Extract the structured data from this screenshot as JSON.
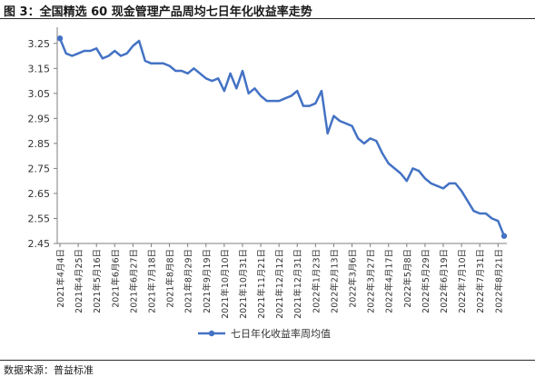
{
  "figure": {
    "title": "图 3：全国精选 60 现金管理产品周均七日年化收益率走势",
    "source": "数据来源：普益标准"
  },
  "colors": {
    "line": "#4472C4",
    "axis": "#7f7f7f"
  },
  "chart_data": {
    "type": "line",
    "title": "",
    "xlabel": "",
    "ylabel": "",
    "ylim": [
      2.45,
      3.3
    ],
    "yticks": [
      "2.45",
      "2.55",
      "2.65",
      "2.75",
      "2.85",
      "2.95",
      "3.05",
      "3.15",
      "3.25"
    ],
    "grid": false,
    "legend": "bottom",
    "x_ticklabels": [
      "2021年4月4日",
      "2021年4月25日",
      "2021年5月16日",
      "2021年6月6日",
      "2021年6月27日",
      "2021年7月18日",
      "2021年8月8日",
      "2021年8月29日",
      "2021年9月19日",
      "2021年10月10日",
      "2021年10月31日",
      "2021年11月21日",
      "2021年12月12日",
      "2021年12月31日",
      "2022年1月23日",
      "2022年2月13日",
      "2022年3月6日",
      "2022年3月27日",
      "2022年4月17日",
      "2022年5月8日",
      "2022年5月29日",
      "2022年6月19日",
      "2022年7月10日",
      "2022年7月31日",
      "2022年8月21日"
    ],
    "series": [
      {
        "name": "七日年化收益率周均值",
        "values": [
          3.27,
          3.21,
          3.2,
          3.21,
          3.22,
          3.22,
          3.23,
          3.19,
          3.2,
          3.22,
          3.2,
          3.21,
          3.24,
          3.26,
          3.18,
          3.17,
          3.17,
          3.17,
          3.16,
          3.14,
          3.14,
          3.13,
          3.15,
          3.13,
          3.11,
          3.1,
          3.11,
          3.06,
          3.13,
          3.07,
          3.14,
          3.05,
          3.07,
          3.04,
          3.02,
          3.02,
          3.02,
          3.03,
          3.04,
          3.06,
          3.0,
          3.0,
          3.01,
          3.06,
          2.89,
          2.96,
          2.94,
          2.93,
          2.92,
          2.87,
          2.85,
          2.87,
          2.86,
          2.81,
          2.77,
          2.75,
          2.73,
          2.7,
          2.75,
          2.74,
          2.71,
          2.69,
          2.68,
          2.67,
          2.69,
          2.69,
          2.66,
          2.62,
          2.58,
          2.57,
          2.57,
          2.55,
          2.54,
          2.48
        ]
      }
    ]
  }
}
